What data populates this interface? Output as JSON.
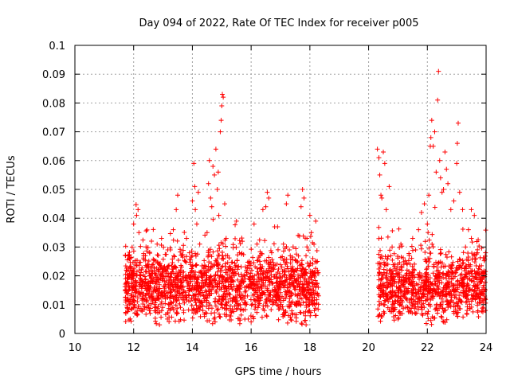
{
  "chart_data": {
    "type": "scatter",
    "title": "Day 094 of 2022, Rate Of TEC Index for receiver p005",
    "xlabel": "GPS time / hours",
    "ylabel": "ROTI / TECUs",
    "xlim": [
      10,
      24
    ],
    "ylim": [
      0,
      0.1
    ],
    "xticks": [
      10,
      12,
      14,
      16,
      18,
      20,
      22,
      24
    ],
    "xtick_labels": [
      "10",
      "12",
      "14",
      "16",
      "18",
      "20",
      "22",
      "24"
    ],
    "yticks": [
      0,
      0.01,
      0.02,
      0.03,
      0.04,
      0.05,
      0.06,
      0.07,
      0.08,
      0.09,
      0.1
    ],
    "ytick_labels": [
      "0",
      "0.01",
      "0.02",
      "0.03",
      "0.04",
      "0.05",
      "0.06",
      "0.07",
      "0.08",
      "0.09",
      "0.1"
    ],
    "grid": true,
    "marker": "+",
    "series": [
      {
        "name": "ROTI",
        "color": "#ff0000",
        "points": [
          [
            11.72,
            0.027
          ],
          [
            11.75,
            0.022
          ],
          [
            11.78,
            0.018
          ],
          [
            11.8,
            0.012
          ],
          [
            11.83,
            0.015
          ],
          [
            11.86,
            0.026
          ],
          [
            11.9,
            0.011
          ],
          [
            11.95,
            0.02
          ],
          [
            12.0,
            0.038
          ],
          [
            12.05,
            0.009
          ],
          [
            12.1,
            0.041
          ],
          [
            12.15,
            0.043
          ],
          [
            12.18,
            0.035
          ],
          [
            12.2,
            0.014
          ],
          [
            12.3,
            0.012
          ],
          [
            12.4,
            0.027
          ],
          [
            12.5,
            0.009
          ],
          [
            12.6,
            0.022
          ],
          [
            12.7,
            0.016
          ],
          [
            12.8,
            0.031
          ],
          [
            12.88,
            0.003
          ],
          [
            12.95,
            0.033
          ],
          [
            13.05,
            0.018
          ],
          [
            13.15,
            0.005
          ],
          [
            13.25,
            0.029
          ],
          [
            13.35,
            0.036
          ],
          [
            13.45,
            0.043
          ],
          [
            13.5,
            0.048
          ],
          [
            13.6,
            0.022
          ],
          [
            13.7,
            0.008
          ],
          [
            13.8,
            0.033
          ],
          [
            13.9,
            0.028
          ],
          [
            14.0,
            0.046
          ],
          [
            14.05,
            0.059
          ],
          [
            14.08,
            0.051
          ],
          [
            14.1,
            0.043
          ],
          [
            14.15,
            0.038
          ],
          [
            14.2,
            0.049
          ],
          [
            14.25,
            0.031
          ],
          [
            14.3,
            0.021
          ],
          [
            14.4,
            0.012
          ],
          [
            14.5,
            0.035
          ],
          [
            14.55,
            0.052
          ],
          [
            14.58,
            0.06
          ],
          [
            14.62,
            0.047
          ],
          [
            14.66,
            0.044
          ],
          [
            14.7,
            0.058
          ],
          [
            14.75,
            0.055
          ],
          [
            14.8,
            0.064
          ],
          [
            14.85,
            0.05
          ],
          [
            14.88,
            0.056
          ],
          [
            14.9,
            0.041
          ],
          [
            14.95,
            0.07
          ],
          [
            14.98,
            0.074
          ],
          [
            15.0,
            0.079
          ],
          [
            15.02,
            0.083
          ],
          [
            15.05,
            0.082
          ],
          [
            15.1,
            0.045
          ],
          [
            15.15,
            0.033
          ],
          [
            15.2,
            0.027
          ],
          [
            15.3,
            0.022
          ],
          [
            15.4,
            0.018
          ],
          [
            15.5,
            0.039
          ],
          [
            15.6,
            0.028
          ],
          [
            15.7,
            0.032
          ],
          [
            15.8,
            0.013
          ],
          [
            15.9,
            0.005
          ],
          [
            16.0,
            0.004
          ],
          [
            16.1,
            0.038
          ],
          [
            16.2,
            0.031
          ],
          [
            16.3,
            0.027
          ],
          [
            16.4,
            0.043
          ],
          [
            16.5,
            0.044
          ],
          [
            16.55,
            0.049
          ],
          [
            16.6,
            0.047
          ],
          [
            16.7,
            0.028
          ],
          [
            16.8,
            0.037
          ],
          [
            16.9,
            0.037
          ],
          [
            17.0,
            0.018
          ],
          [
            17.1,
            0.031
          ],
          [
            17.2,
            0.045
          ],
          [
            17.25,
            0.048
          ],
          [
            17.3,
            0.029
          ],
          [
            17.4,
            0.022
          ],
          [
            17.5,
            0.016
          ],
          [
            17.6,
            0.034
          ],
          [
            17.7,
            0.044
          ],
          [
            17.75,
            0.05
          ],
          [
            17.8,
            0.047
          ],
          [
            17.9,
            0.033
          ],
          [
            18.0,
            0.041
          ],
          [
            18.05,
            0.035
          ],
          [
            18.1,
            0.026
          ],
          [
            18.15,
            0.02
          ],
          [
            18.2,
            0.039
          ],
          [
            18.25,
            0.014
          ],
          [
            20.3,
            0.064
          ],
          [
            20.35,
            0.061
          ],
          [
            20.38,
            0.055
          ],
          [
            20.42,
            0.048
          ],
          [
            20.45,
            0.047
          ],
          [
            20.5,
            0.063
          ],
          [
            20.55,
            0.059
          ],
          [
            20.6,
            0.043
          ],
          [
            20.7,
            0.051
          ],
          [
            20.8,
            0.03
          ],
          [
            21.0,
            0.005
          ],
          [
            21.1,
            0.031
          ],
          [
            21.2,
            0.024
          ],
          [
            21.3,
            0.018
          ],
          [
            21.5,
            0.033
          ],
          [
            21.6,
            0.029
          ],
          [
            21.7,
            0.036
          ],
          [
            21.8,
            0.042
          ],
          [
            21.9,
            0.045
          ],
          [
            22.0,
            0.038
          ],
          [
            22.05,
            0.048
          ],
          [
            22.1,
            0.065
          ],
          [
            22.12,
            0.068
          ],
          [
            22.15,
            0.074
          ],
          [
            22.2,
            0.065
          ],
          [
            22.25,
            0.07
          ],
          [
            22.3,
            0.056
          ],
          [
            22.35,
            0.081
          ],
          [
            22.38,
            0.091
          ],
          [
            22.42,
            0.06
          ],
          [
            22.45,
            0.054
          ],
          [
            22.5,
            0.049
          ],
          [
            22.55,
            0.05
          ],
          [
            22.6,
            0.063
          ],
          [
            22.65,
            0.057
          ],
          [
            22.7,
            0.052
          ],
          [
            22.8,
            0.043
          ],
          [
            22.9,
            0.046
          ],
          [
            23.0,
            0.059
          ],
          [
            23.02,
            0.066
          ],
          [
            23.05,
            0.073
          ],
          [
            23.1,
            0.049
          ],
          [
            23.2,
            0.043
          ],
          [
            23.3,
            0.03
          ],
          [
            23.4,
            0.036
          ],
          [
            23.5,
            0.033
          ],
          [
            23.6,
            0.041
          ],
          [
            23.7,
            0.028
          ],
          [
            23.8,
            0.019
          ],
          [
            23.9,
            0.021
          ],
          [
            23.95,
            0.013
          ]
        ]
      }
    ],
    "clusters": [
      {
        "x": [
          11.7,
          18.3
        ],
        "center": 0.016,
        "spread": 0.012
      },
      {
        "x": [
          20.3,
          24.0
        ],
        "center": 0.016,
        "spread": 0.012
      }
    ]
  }
}
